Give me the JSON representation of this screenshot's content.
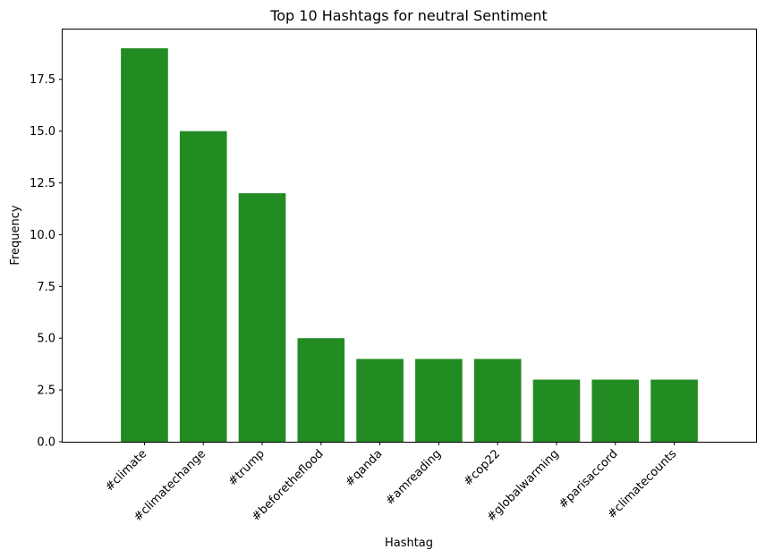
{
  "chart_data": {
    "type": "bar",
    "title": "Top 10 Hashtags for neutral Sentiment",
    "xlabel": "Hashtag",
    "ylabel": "Frequency",
    "categories": [
      "#climate",
      "#climatechange",
      "#trump",
      "#beforetheflood",
      "#qanda",
      "#amreading",
      "#cop22",
      "#globalwarming",
      "#parisaccord",
      "#climatecounts"
    ],
    "values": [
      19,
      15,
      12,
      5,
      4,
      4,
      4,
      3,
      3,
      3
    ],
    "ylim": [
      0,
      19.95
    ],
    "yticks": [
      "0.0",
      "2.5",
      "5.0",
      "7.5",
      "10.0",
      "12.5",
      "15.0",
      "17.5"
    ],
    "bar_color": "#228b22",
    "grid": false
  }
}
